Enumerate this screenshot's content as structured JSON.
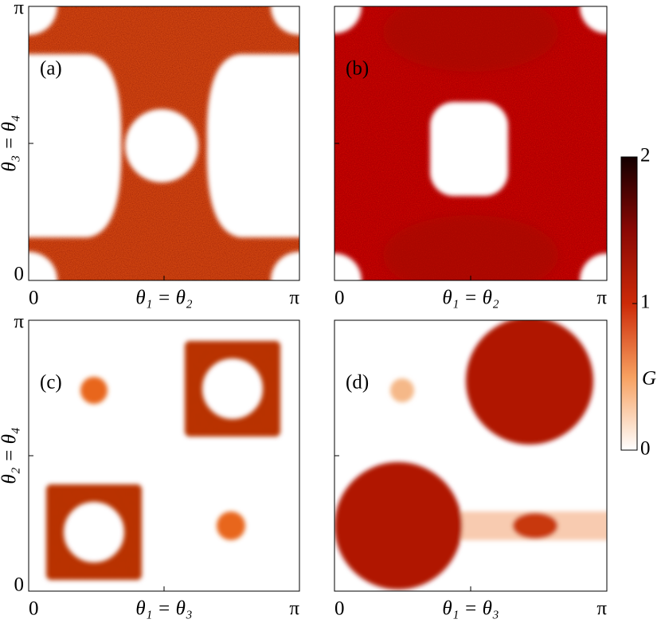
{
  "chart_data": [
    {
      "type": "heatmap",
      "panel_label": "(a)",
      "x_label": "θ₁ = θ₂",
      "y_label": "θ₃ = θ₄",
      "xlim": [
        0,
        3.1416
      ],
      "ylim": [
        0,
        3.1416
      ],
      "xticks": [
        0,
        {
          "value": 1.5708,
          "label": null
        },
        {
          "value": 3.1416,
          "label": "π"
        }
      ],
      "yticks": [
        0,
        {
          "value": 1.5708,
          "label": null
        },
        {
          "value": 3.1416,
          "label": "π"
        }
      ]
    },
    {
      "type": "heatmap",
      "panel_label": "(b)",
      "x_label": "θ₁ = θ₂",
      "xlim": [
        0,
        3.1416
      ],
      "ylim": [
        0,
        3.1416
      ],
      "xticks": [
        0,
        {
          "value": 1.5708,
          "label": null
        },
        {
          "value": 3.1416,
          "label": "π"
        }
      ],
      "yticks": [
        {
          "value": 0,
          "label": null
        },
        {
          "value": 1.5708,
          "label": null
        },
        {
          "value": 3.1416,
          "label": null
        }
      ]
    },
    {
      "type": "heatmap",
      "panel_label": "(c)",
      "x_label": "θ₁ = θ₃",
      "y_label": "θ₂ = θ₄",
      "xlim": [
        0,
        3.1416
      ],
      "ylim": [
        0,
        3.1416
      ],
      "xticks": [
        0,
        {
          "value": 1.5708,
          "label": null
        },
        {
          "value": 3.1416,
          "label": "π"
        }
      ],
      "yticks": [
        0,
        {
          "value": 1.5708,
          "label": null
        },
        {
          "value": 3.1416,
          "label": "π"
        }
      ]
    },
    {
      "type": "heatmap",
      "panel_label": "(d)",
      "x_label": "θ₁ = θ₃",
      "xlim": [
        0,
        3.1416
      ],
      "ylim": [
        0,
        3.1416
      ],
      "xticks": [
        0,
        {
          "value": 1.5708,
          "label": null
        },
        {
          "value": 3.1416,
          "label": "π"
        }
      ],
      "yticks": [
        {
          "value": 0,
          "label": null
        },
        {
          "value": 1.5708,
          "label": null
        },
        {
          "value": 3.1416,
          "label": null
        }
      ]
    }
  ],
  "colorbar": {
    "label": "G",
    "lim": [
      0,
      2
    ],
    "ticks": [
      0,
      1,
      2
    ]
  }
}
